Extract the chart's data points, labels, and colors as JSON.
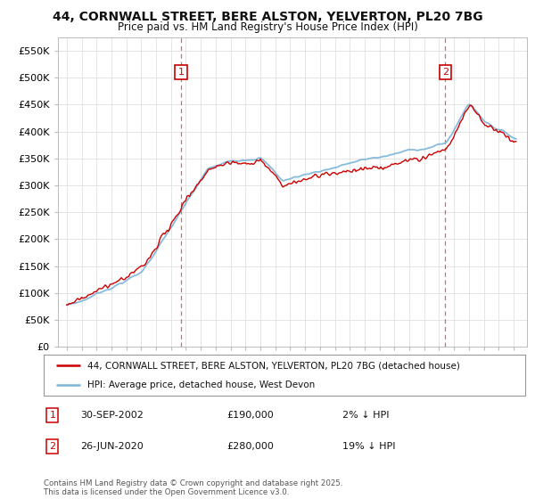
{
  "title_line1": "44, CORNWALL STREET, BERE ALSTON, YELVERTON, PL20 7BG",
  "title_line2": "Price paid vs. HM Land Registry's House Price Index (HPI)",
  "ylim": [
    0,
    575000
  ],
  "yticks": [
    0,
    50000,
    100000,
    150000,
    200000,
    250000,
    300000,
    350000,
    400000,
    450000,
    500000,
    550000
  ],
  "ytick_labels": [
    "£0",
    "£50K",
    "£100K",
    "£150K",
    "£200K",
    "£250K",
    "£300K",
    "£350K",
    "£400K",
    "£450K",
    "£500K",
    "£550K"
  ],
  "hpi_color": "#7ab4d8",
  "price_color": "#cc0000",
  "legend_price_label": "44, CORNWALL STREET, BERE ALSTON, YELVERTON, PL20 7BG (detached house)",
  "legend_hpi_label": "HPI: Average price, detached house, West Devon",
  "copyright": "Contains HM Land Registry data © Crown copyright and database right 2025.\nThis data is licensed under the Open Government Licence v3.0.",
  "background_color": "#ffffff",
  "grid_color": "#e0e0e0"
}
